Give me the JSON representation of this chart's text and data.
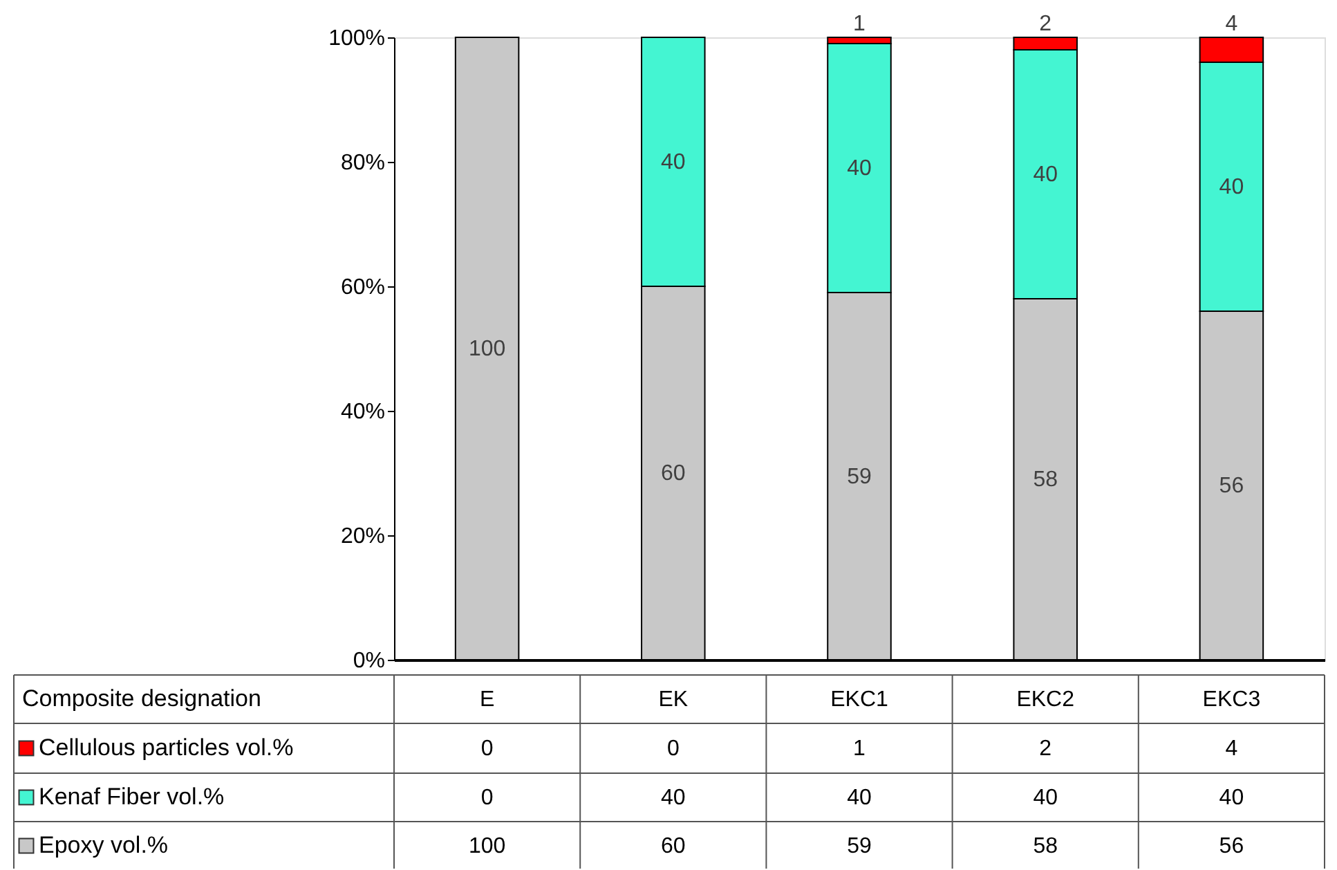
{
  "chart_data": {
    "type": "bar",
    "stacked": true,
    "categories": [
      "E",
      "EK",
      "EKC1",
      "EKC2",
      "EKC3"
    ],
    "series": [
      {
        "name": "Epoxy vol.%",
        "color": "#c8c8c8",
        "values": [
          100,
          60,
          59,
          58,
          56
        ]
      },
      {
        "name": "Kenaf Fiber vol.%",
        "color": "#44f5d2",
        "values": [
          0,
          40,
          40,
          40,
          40
        ]
      },
      {
        "name": "Cellulous particles vol.%",
        "color": "#ff0000",
        "values": [
          0,
          0,
          1,
          2,
          4
        ]
      }
    ],
    "annotations": [
      "100",
      "60",
      "59",
      "58",
      "56",
      "40",
      "40",
      "40",
      "40",
      "1",
      "2",
      "4"
    ],
    "ylim": [
      0,
      100
    ],
    "yticks": [
      {
        "value": 0,
        "label": "0%"
      },
      {
        "value": 20,
        "label": "20%"
      },
      {
        "value": 40,
        "label": "40%"
      },
      {
        "value": 60,
        "label": "60%"
      },
      {
        "value": 80,
        "label": "80%"
      },
      {
        "value": 100,
        "label": "100%"
      }
    ],
    "legend_title": "Composite designation",
    "legend": "bottom",
    "data_labels": true,
    "grid": false
  }
}
